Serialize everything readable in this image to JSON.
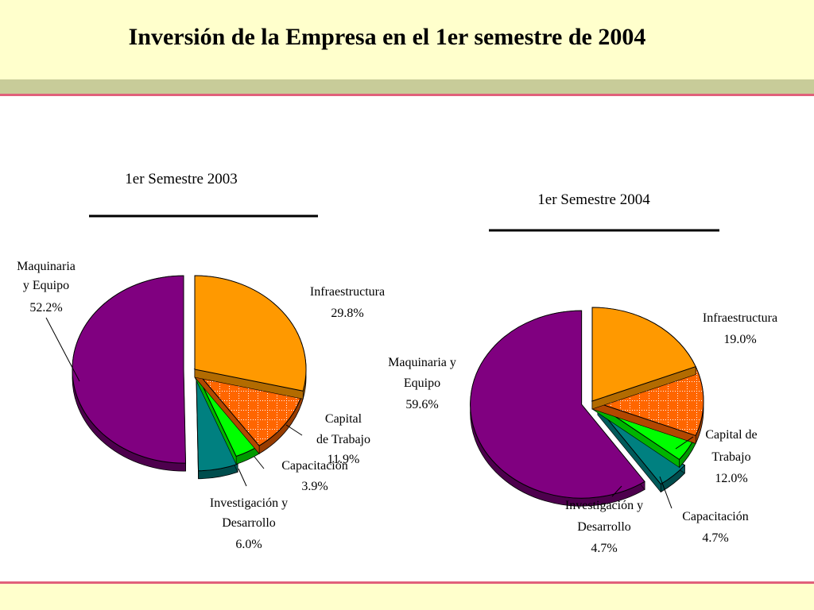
{
  "title": "Inversión de la Empresa en el 1er semestre de 2004",
  "chart_data": [
    {
      "type": "pie",
      "title": "1er Semestre 2003",
      "slices": [
        {
          "label": "Maquinaria y Equipo",
          "value": 52.2,
          "display": "52.2%",
          "color": "#800080"
        },
        {
          "label": "Infraestructura",
          "value": 29.8,
          "display": "29.8%",
          "color": "#ff9900"
        },
        {
          "label": "Capital de Trabajo",
          "value": 11.9,
          "display": "11.9%",
          "color": "#ff6600"
        },
        {
          "label": "Capacitación",
          "value": 3.9,
          "display": "3.9%",
          "color": "#00ff00"
        },
        {
          "label": "Investigación y Desarrollo",
          "value": 6.0,
          "display": "6.0%",
          "color": "#008080"
        }
      ]
    },
    {
      "type": "pie",
      "title": "1er Semestre 2004",
      "slices": [
        {
          "label": "Maquinaria y Equipo",
          "value": 59.6,
          "display": "59.6%",
          "color": "#800080"
        },
        {
          "label": "Infraestructura",
          "value": 19.0,
          "display": "19.0%",
          "color": "#ff9900"
        },
        {
          "label": "Capital de Trabajo",
          "value": 12.0,
          "display": "12.0%",
          "color": "#ff6600"
        },
        {
          "label": "Capacitación",
          "value": 4.7,
          "display": "4.7%",
          "color": "#00ff00"
        },
        {
          "label": "Investigación y Desarrollo",
          "value": 4.7,
          "display": "4.7%",
          "color": "#008080"
        }
      ]
    }
  ]
}
